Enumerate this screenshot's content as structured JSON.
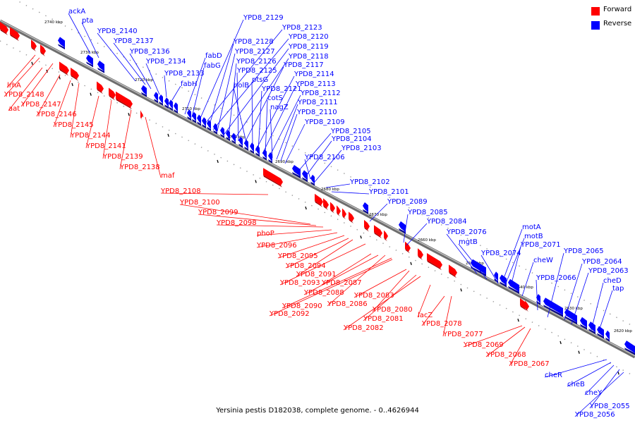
{
  "caption": "Yersinia pestis D182038, complete genome. - 0..4626944",
  "legend": [
    {
      "label": "Forward",
      "color": "#ff0000"
    },
    {
      "label": "Reverse",
      "color": "#0000ff"
    }
  ],
  "colors": {
    "forward": "#ff0000",
    "reverse": "#0000ff",
    "axis": "#6e6e6e",
    "axis_highlight": "#c8c8c8",
    "tick_label": "#000000"
  },
  "ticks": [
    "2740 kbp",
    "2730 kbp",
    "2720 kbp",
    "2710 kbp",
    "2700 kbp",
    "2690 kbp",
    "2680 kbp",
    "2670 kbp",
    "2660 kbp",
    "2650 kbp",
    "2640 kbp",
    "2630 kbp",
    "2620 kbp"
  ],
  "forward_labels": [
    "lrhA",
    "YPD8_2148",
    "aat",
    "YPD8_2147",
    "YPD8_2146",
    "YPD8_2145",
    "YPD8_2144",
    "YPD8_2141",
    "YPD8_2139",
    "YPD8_2138",
    "maf",
    "YPD8_2108",
    "YPD8_2100",
    "YPD8_2099",
    "YPD8_2098",
    "phoP",
    "YPD8_2096",
    "YPD8_2095",
    "YPD8_2094",
    "YPD8_2091",
    "YPD8_2093",
    "YPD8_2087",
    "YPD8_2088",
    "YPD8_2086",
    "YPD8_2083",
    "YPD8_2090",
    "YPD8_2080",
    "YPD8_2092",
    "YPD8_2081",
    "lacZ",
    "YPD8_2082",
    "YPD8_2078",
    "YPD8_2077",
    "YPD8_2069",
    "YPD8_2068",
    "YPD8_2067"
  ],
  "reverse_labels": [
    "ackA",
    "pta",
    "YPD8_2140",
    "YPD8_2137",
    "YPD8_2136",
    "YPD8_2134",
    "YPD8_2133",
    "fabH",
    "fabD",
    "fabG",
    "YPD8_2129",
    "YPD8_2123",
    "YPD8_2128",
    "YPD8_2120",
    "YPD8_2127",
    "YPD8_2119",
    "YPD8_2126",
    "YPD8_2118",
    "YPD8_2125",
    "YPD8_2117",
    "holB",
    "ptsG",
    "YPD8_2114",
    "YPD8_2121",
    "YPD8_2113",
    "cotS",
    "YPD8_2112",
    "nagZ",
    "YPD8_2111",
    "YPD8_2110",
    "YPD8_2109",
    "YPD8_2105",
    "YPD8_2104",
    "YPD8_2106",
    "YPD8_2103",
    "YPD8_2102",
    "YPD8_2101",
    "YPD8_2089",
    "YPD8_2085",
    "YPD8_2084",
    "YPD8_2076",
    "motA",
    "motB",
    "mgtB",
    "YPD8_2071",
    "YPD8_2074",
    "cheW",
    "YPD8_2065",
    "YPD8_2064",
    "YPD8_2066",
    "YPD8_2063",
    "cheD",
    "tap",
    "cheR",
    "cheB",
    "cheY",
    "YPD8_2055",
    "YPD8_2056"
  ]
}
